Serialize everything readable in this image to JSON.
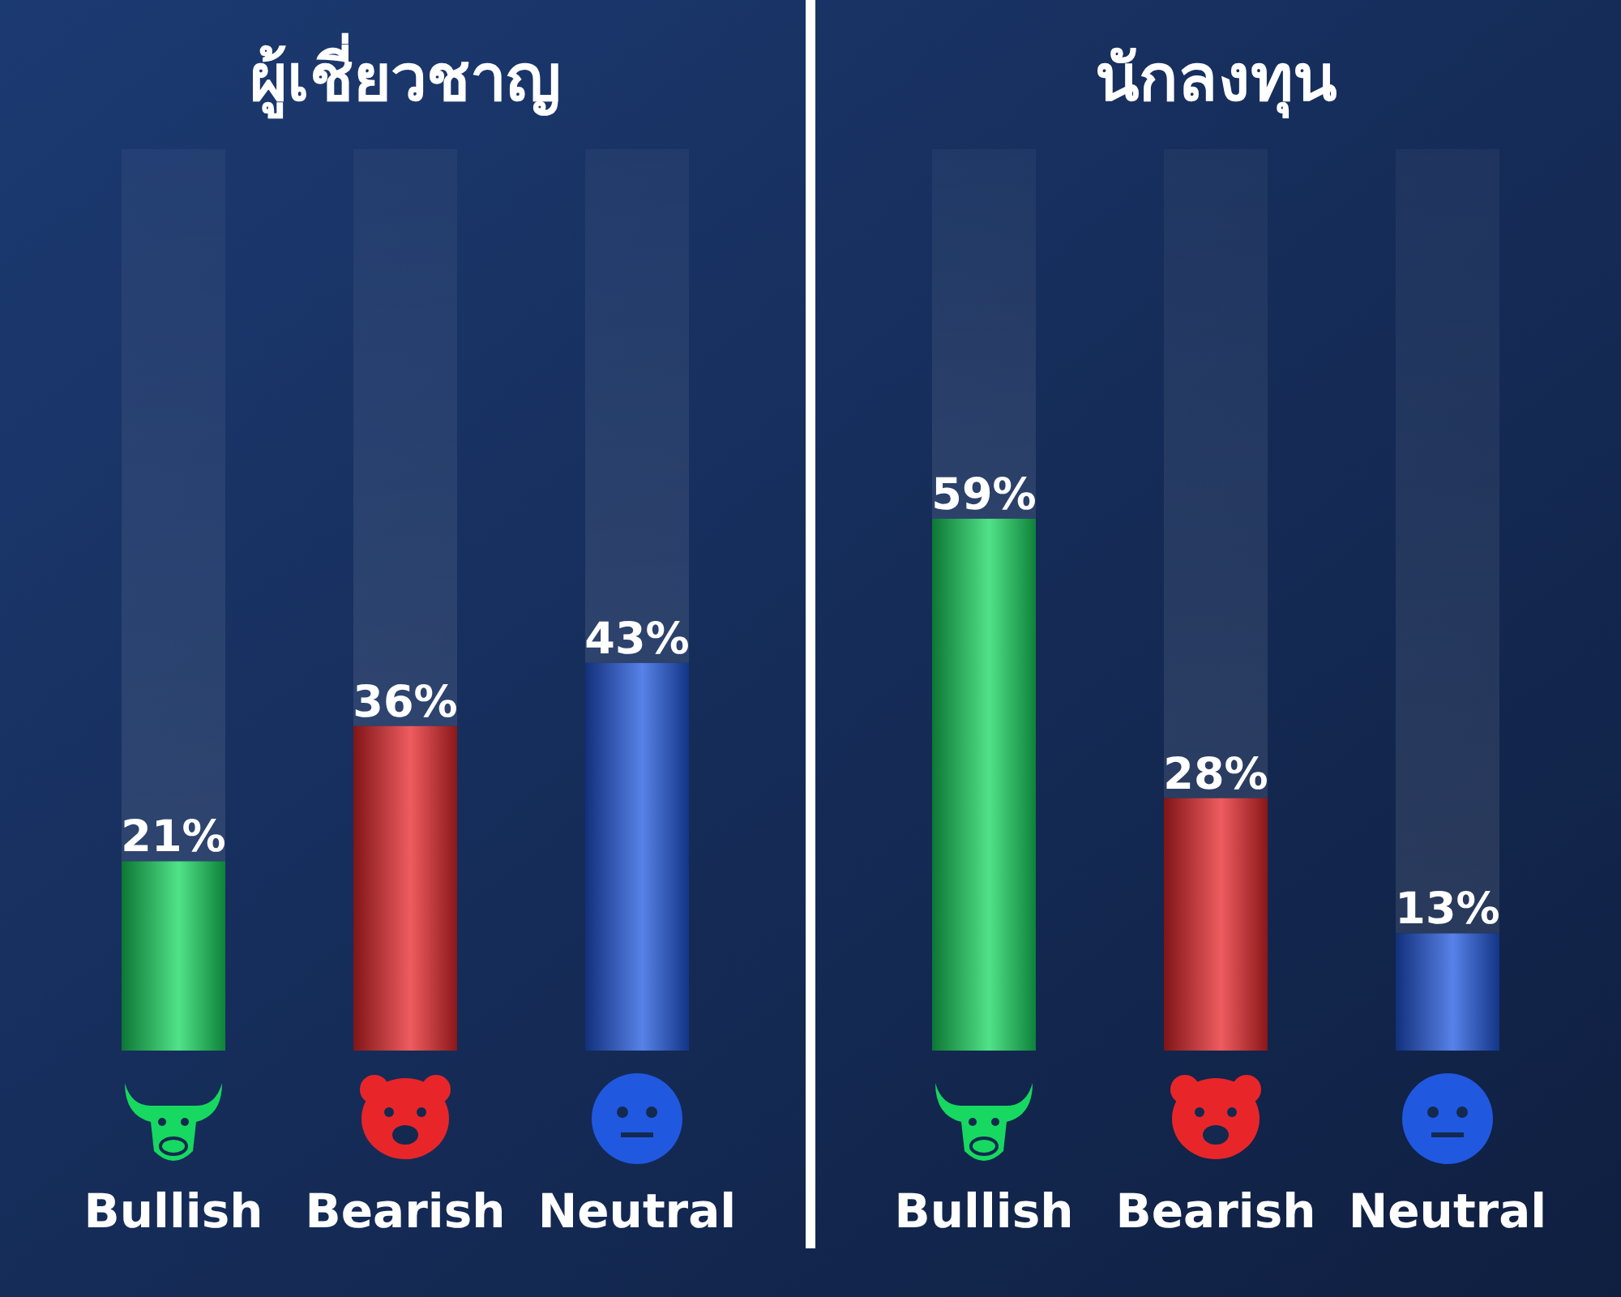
{
  "chart_data": [
    {
      "type": "bar",
      "title": "ผู้เชี่ยวชาญ",
      "categories": [
        "Bullish",
        "Bearish",
        "Neutral"
      ],
      "values": [
        21,
        36,
        43
      ],
      "colors": [
        "#17d860",
        "#e8262a",
        "#2058e0"
      ],
      "value_labels": [
        "21%",
        "36%",
        "43%"
      ]
    },
    {
      "type": "bar",
      "title": "นักลงทุน",
      "categories": [
        "Bullish",
        "Bearish",
        "Neutral"
      ],
      "values": [
        59,
        28,
        13
      ],
      "colors": [
        "#17d860",
        "#e8262a",
        "#2058e0"
      ],
      "value_labels": [
        "59%",
        "28%",
        "13%"
      ]
    }
  ]
}
